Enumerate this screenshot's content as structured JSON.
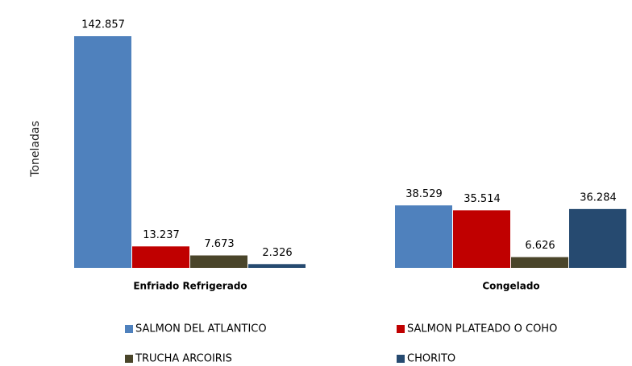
{
  "chart_data": {
    "type": "bar",
    "y_label": "Toneladas",
    "categories": [
      "Enfriado Refrigerado",
      "Congelado"
    ],
    "series": [
      {
        "name": "SALMON DEL ATLANTICO",
        "color": "#4f81bd",
        "values": [
          142857,
          38529
        ],
        "value_labels": [
          "142.857",
          "38.529"
        ]
      },
      {
        "name": "SALMON PLATEADO O COHO",
        "color": "#c00000",
        "values": [
          13237,
          35514
        ],
        "value_labels": [
          "13.237",
          "35.514"
        ]
      },
      {
        "name": "TRUCHA ARCOIRIS",
        "color": "#4a452a",
        "values": [
          7673,
          6626
        ],
        "value_labels": [
          "7.673",
          "6.626"
        ]
      },
      {
        "name": "CHORITO",
        "color": "#264a70",
        "values": [
          2326,
          36284
        ],
        "value_labels": [
          "2.326",
          "36.284"
        ]
      }
    ]
  }
}
